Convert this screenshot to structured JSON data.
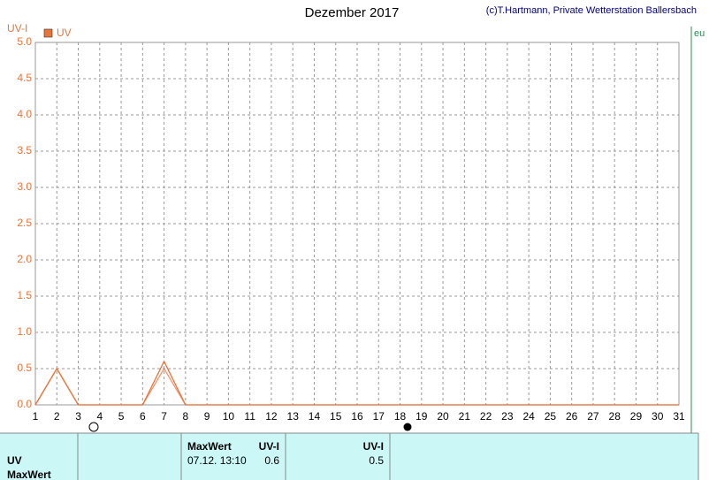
{
  "chart_data": {
    "type": "line",
    "title": "Dezember 2017",
    "credit": "(c)T.Hartmann, Private Wetterstation Ballersbach",
    "y_label": "UV-I",
    "x": [
      1,
      2,
      3,
      4,
      5,
      6,
      7,
      8,
      9,
      10,
      11,
      12,
      13,
      14,
      15,
      16,
      17,
      18,
      19,
      20,
      21,
      22,
      23,
      24,
      25,
      26,
      27,
      28,
      29,
      30,
      31
    ],
    "series": [
      {
        "name": "UV",
        "color": "#e8743b",
        "values": [
          0,
          0.5,
          0,
          0,
          0,
          0,
          0.6,
          0,
          0,
          0,
          0,
          0,
          0,
          0,
          0,
          0,
          0,
          0,
          0,
          0,
          0,
          0,
          0,
          0,
          0,
          0,
          0,
          0,
          0,
          0,
          0
        ],
        "values_2": [
          0,
          0.5,
          0,
          0,
          0,
          0,
          0.5,
          0,
          0,
          0,
          0,
          0,
          0,
          0,
          0,
          0,
          0,
          0,
          0,
          0,
          0,
          0,
          0,
          0,
          0,
          0,
          0,
          0,
          0,
          0,
          0
        ]
      }
    ],
    "xlim": [
      1,
      31
    ],
    "xticks": [
      1,
      2,
      3,
      4,
      5,
      6,
      7,
      8,
      9,
      10,
      11,
      12,
      13,
      14,
      15,
      16,
      17,
      18,
      19,
      20,
      21,
      22,
      23,
      24,
      25,
      26,
      27,
      28,
      29,
      30,
      31
    ],
    "ylim": [
      0,
      5
    ],
    "yticks": [
      {
        "value": 0,
        "label": "0.0"
      },
      0.5,
      {
        "value": 1,
        "label": "1.0"
      },
      1.5,
      {
        "value": 2,
        "label": "2.0"
      },
      2.5,
      {
        "value": 3,
        "label": "3.0"
      },
      3.5,
      {
        "value": 4,
        "label": "4.0"
      },
      4.5,
      {
        "value": 5,
        "label": "5.0"
      }
    ],
    "grid": true
  },
  "table": {
    "rows": [
      [
        "",
        "MaxWert",
        "UV-I",
        "UV-I"
      ],
      [
        "UV",
        "07.12.  13:10",
        "0.6",
        "0.5"
      ],
      [
        "MaxWert"
      ]
    ]
  }
}
